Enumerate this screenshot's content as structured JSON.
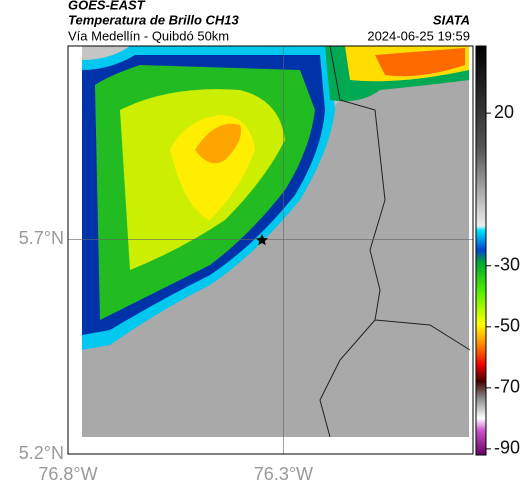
{
  "header": {
    "source": "GOES-EAST",
    "title": "Temperatura de Brillo CH13",
    "right_title": "SIATA",
    "location": "Vía Medellín - Quibdó 50km",
    "datetime": "2024-06-25 19:59"
  },
  "map": {
    "xlim": [
      -76.8,
      -75.86
    ],
    "ylim": [
      5.2,
      6.15
    ],
    "xticks": [
      {
        "value": -76.8,
        "label": "76.8°W"
      },
      {
        "value": -76.3,
        "label": "76.3°W"
      }
    ],
    "yticks": [
      {
        "value": 5.7,
        "label": "5.7°N"
      },
      {
        "value": 5.2,
        "label": "5.2°N"
      }
    ]
  },
  "colorbar": {
    "lim": [
      42,
      -92
    ],
    "ticks": [
      20,
      -30,
      -50,
      -70,
      -90
    ]
  }
}
